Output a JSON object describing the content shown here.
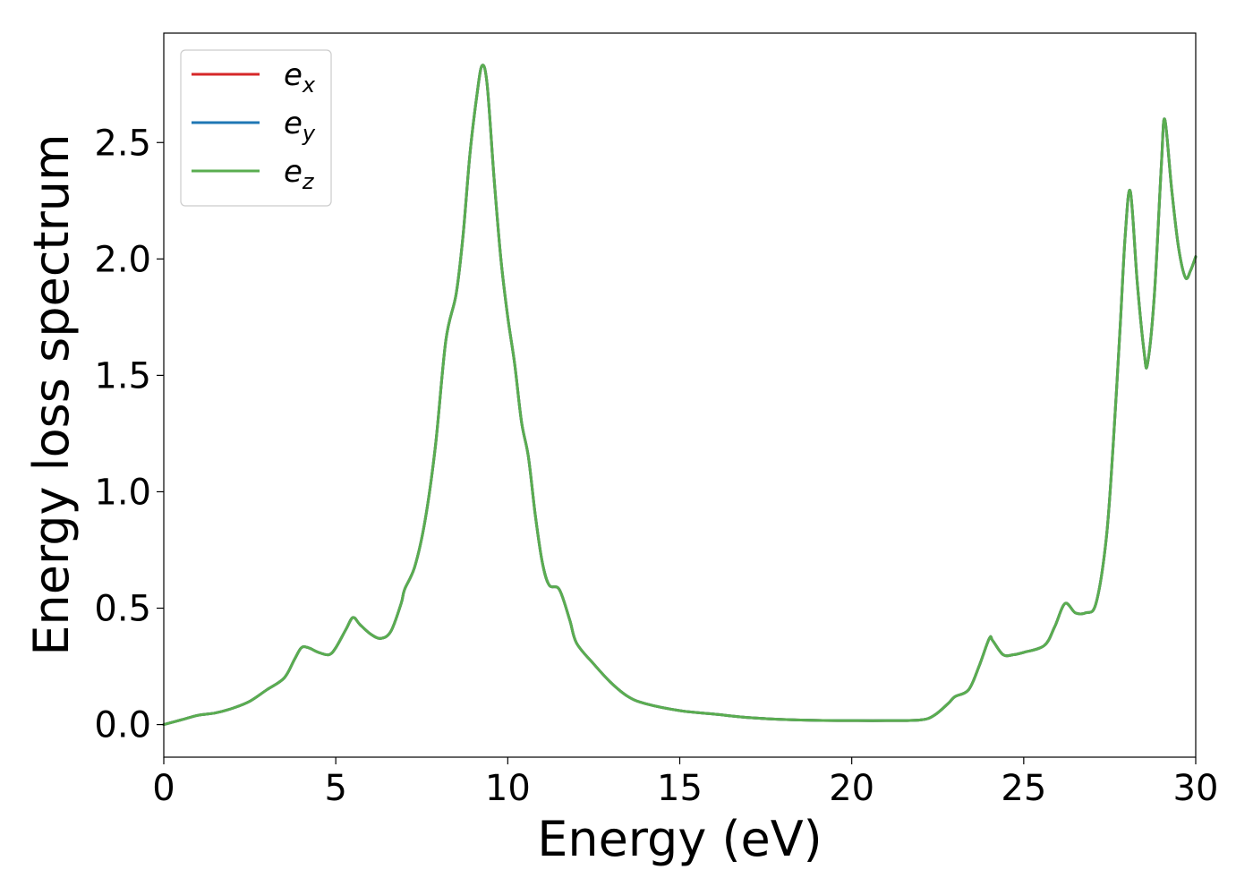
{
  "chart_data": {
    "type": "line",
    "title": "",
    "xlabel": "Energy (eV)",
    "ylabel": "Energy loss spectrum",
    "xlim": [
      0,
      30
    ],
    "ylim": [
      -0.14,
      2.97
    ],
    "xticks": [
      0,
      5,
      10,
      15,
      20,
      25,
      30
    ],
    "xtick_labels": [
      "0",
      "5",
      "10",
      "15",
      "20",
      "25",
      "30"
    ],
    "yticks": [
      0.0,
      0.5,
      1.0,
      1.5,
      2.0,
      2.5
    ],
    "ytick_labels": [
      "0.0",
      "0.5",
      "1.0",
      "1.5",
      "2.0",
      "2.5"
    ],
    "grid": false,
    "legend": {
      "placement": "top-left"
    },
    "series": [
      {
        "name": "e_x",
        "label_main": "e",
        "label_sub": "x",
        "color": "#d62728",
        "points": [
          [
            0,
            0.0
          ],
          [
            0.5,
            0.02
          ],
          [
            1,
            0.04
          ],
          [
            1.5,
            0.05
          ],
          [
            2,
            0.07
          ],
          [
            2.5,
            0.1
          ],
          [
            3,
            0.15
          ],
          [
            3.5,
            0.2
          ],
          [
            3.8,
            0.28
          ],
          [
            4.0,
            0.33
          ],
          [
            4.2,
            0.33
          ],
          [
            4.5,
            0.31
          ],
          [
            4.8,
            0.3
          ],
          [
            5.0,
            0.33
          ],
          [
            5.3,
            0.41
          ],
          [
            5.5,
            0.46
          ],
          [
            5.7,
            0.43
          ],
          [
            6.0,
            0.39
          ],
          [
            6.3,
            0.37
          ],
          [
            6.6,
            0.4
          ],
          [
            6.9,
            0.52
          ],
          [
            7.0,
            0.58
          ],
          [
            7.3,
            0.68
          ],
          [
            7.6,
            0.88
          ],
          [
            7.9,
            1.2
          ],
          [
            8.2,
            1.65
          ],
          [
            8.5,
            1.85
          ],
          [
            8.7,
            2.1
          ],
          [
            8.9,
            2.45
          ],
          [
            9.1,
            2.7
          ],
          [
            9.25,
            2.83
          ],
          [
            9.4,
            2.75
          ],
          [
            9.6,
            2.35
          ],
          [
            9.8,
            2.0
          ],
          [
            10.0,
            1.75
          ],
          [
            10.2,
            1.55
          ],
          [
            10.4,
            1.3
          ],
          [
            10.6,
            1.15
          ],
          [
            10.8,
            0.9
          ],
          [
            11.0,
            0.7
          ],
          [
            11.2,
            0.6
          ],
          [
            11.5,
            0.58
          ],
          [
            11.8,
            0.45
          ],
          [
            12.0,
            0.35
          ],
          [
            12.5,
            0.26
          ],
          [
            13.0,
            0.18
          ],
          [
            13.5,
            0.12
          ],
          [
            14.0,
            0.09
          ],
          [
            15.0,
            0.06
          ],
          [
            16.0,
            0.045
          ],
          [
            17.0,
            0.03
          ],
          [
            18.0,
            0.022
          ],
          [
            19.0,
            0.018
          ],
          [
            20.0,
            0.017
          ],
          [
            21.0,
            0.017
          ],
          [
            22.0,
            0.02
          ],
          [
            22.4,
            0.04
          ],
          [
            22.8,
            0.09
          ],
          [
            23.0,
            0.12
          ],
          [
            23.4,
            0.15
          ],
          [
            23.7,
            0.25
          ],
          [
            24.0,
            0.37
          ],
          [
            24.1,
            0.36
          ],
          [
            24.4,
            0.3
          ],
          [
            24.7,
            0.3
          ],
          [
            25.0,
            0.31
          ],
          [
            25.6,
            0.34
          ],
          [
            25.9,
            0.42
          ],
          [
            26.2,
            0.52
          ],
          [
            26.5,
            0.48
          ],
          [
            26.8,
            0.48
          ],
          [
            27.1,
            0.52
          ],
          [
            27.4,
            0.8
          ],
          [
            27.6,
            1.2
          ],
          [
            27.8,
            1.7
          ],
          [
            27.95,
            2.1
          ],
          [
            28.1,
            2.29
          ],
          [
            28.3,
            1.9
          ],
          [
            28.5,
            1.6
          ],
          [
            28.6,
            1.55
          ],
          [
            28.8,
            1.85
          ],
          [
            29.0,
            2.4
          ],
          [
            29.1,
            2.6
          ],
          [
            29.3,
            2.3
          ],
          [
            29.5,
            2.05
          ],
          [
            29.7,
            1.92
          ],
          [
            29.85,
            1.95
          ],
          [
            30.0,
            2.01
          ]
        ]
      },
      {
        "name": "e_y",
        "label_main": "e",
        "label_sub": "y",
        "color": "#1f77b4",
        "points": [
          [
            0,
            0.0
          ],
          [
            0.5,
            0.02
          ],
          [
            1,
            0.04
          ],
          [
            1.5,
            0.05
          ],
          [
            2,
            0.07
          ],
          [
            2.5,
            0.1
          ],
          [
            3,
            0.15
          ],
          [
            3.5,
            0.2
          ],
          [
            3.8,
            0.28
          ],
          [
            4.0,
            0.33
          ],
          [
            4.2,
            0.33
          ],
          [
            4.5,
            0.31
          ],
          [
            4.8,
            0.3
          ],
          [
            5.0,
            0.33
          ],
          [
            5.3,
            0.41
          ],
          [
            5.5,
            0.46
          ],
          [
            5.7,
            0.43
          ],
          [
            6.0,
            0.39
          ],
          [
            6.3,
            0.37
          ],
          [
            6.6,
            0.4
          ],
          [
            6.9,
            0.52
          ],
          [
            7.0,
            0.58
          ],
          [
            7.3,
            0.68
          ],
          [
            7.6,
            0.88
          ],
          [
            7.9,
            1.2
          ],
          [
            8.2,
            1.65
          ],
          [
            8.5,
            1.85
          ],
          [
            8.7,
            2.1
          ],
          [
            8.9,
            2.45
          ],
          [
            9.1,
            2.7
          ],
          [
            9.25,
            2.83
          ],
          [
            9.4,
            2.75
          ],
          [
            9.6,
            2.35
          ],
          [
            9.8,
            2.0
          ],
          [
            10.0,
            1.75
          ],
          [
            10.2,
            1.55
          ],
          [
            10.4,
            1.3
          ],
          [
            10.6,
            1.15
          ],
          [
            10.8,
            0.9
          ],
          [
            11.0,
            0.7
          ],
          [
            11.2,
            0.6
          ],
          [
            11.5,
            0.58
          ],
          [
            11.8,
            0.45
          ],
          [
            12.0,
            0.35
          ],
          [
            12.5,
            0.26
          ],
          [
            13.0,
            0.18
          ],
          [
            13.5,
            0.12
          ],
          [
            14.0,
            0.09
          ],
          [
            15.0,
            0.06
          ],
          [
            16.0,
            0.045
          ],
          [
            17.0,
            0.03
          ],
          [
            18.0,
            0.022
          ],
          [
            19.0,
            0.018
          ],
          [
            20.0,
            0.017
          ],
          [
            21.0,
            0.017
          ],
          [
            22.0,
            0.02
          ],
          [
            22.4,
            0.04
          ],
          [
            22.8,
            0.09
          ],
          [
            23.0,
            0.12
          ],
          [
            23.4,
            0.15
          ],
          [
            23.7,
            0.25
          ],
          [
            24.0,
            0.37
          ],
          [
            24.1,
            0.36
          ],
          [
            24.4,
            0.3
          ],
          [
            24.7,
            0.3
          ],
          [
            25.0,
            0.31
          ],
          [
            25.6,
            0.34
          ],
          [
            25.9,
            0.42
          ],
          [
            26.2,
            0.52
          ],
          [
            26.5,
            0.48
          ],
          [
            26.8,
            0.48
          ],
          [
            27.1,
            0.52
          ],
          [
            27.4,
            0.8
          ],
          [
            27.6,
            1.2
          ],
          [
            27.8,
            1.7
          ],
          [
            27.95,
            2.1
          ],
          [
            28.1,
            2.29
          ],
          [
            28.3,
            1.9
          ],
          [
            28.5,
            1.6
          ],
          [
            28.6,
            1.55
          ],
          [
            28.8,
            1.85
          ],
          [
            29.0,
            2.4
          ],
          [
            29.1,
            2.6
          ],
          [
            29.3,
            2.3
          ],
          [
            29.5,
            2.05
          ],
          [
            29.7,
            1.92
          ],
          [
            29.85,
            1.95
          ],
          [
            30.0,
            2.01
          ]
        ]
      },
      {
        "name": "e_z",
        "label_main": "e",
        "label_sub": "z",
        "color": "#5aad50",
        "points": [
          [
            0,
            0.0
          ],
          [
            0.5,
            0.02
          ],
          [
            1,
            0.04
          ],
          [
            1.5,
            0.05
          ],
          [
            2,
            0.07
          ],
          [
            2.5,
            0.1
          ],
          [
            3,
            0.15
          ],
          [
            3.5,
            0.2
          ],
          [
            3.8,
            0.28
          ],
          [
            4.0,
            0.33
          ],
          [
            4.2,
            0.33
          ],
          [
            4.5,
            0.31
          ],
          [
            4.8,
            0.3
          ],
          [
            5.0,
            0.33
          ],
          [
            5.3,
            0.41
          ],
          [
            5.5,
            0.46
          ],
          [
            5.7,
            0.43
          ],
          [
            6.0,
            0.39
          ],
          [
            6.3,
            0.37
          ],
          [
            6.6,
            0.4
          ],
          [
            6.9,
            0.52
          ],
          [
            7.0,
            0.58
          ],
          [
            7.3,
            0.68
          ],
          [
            7.6,
            0.88
          ],
          [
            7.9,
            1.2
          ],
          [
            8.2,
            1.65
          ],
          [
            8.5,
            1.85
          ],
          [
            8.7,
            2.1
          ],
          [
            8.9,
            2.45
          ],
          [
            9.1,
            2.7
          ],
          [
            9.25,
            2.83
          ],
          [
            9.4,
            2.75
          ],
          [
            9.6,
            2.35
          ],
          [
            9.8,
            2.0
          ],
          [
            10.0,
            1.75
          ],
          [
            10.2,
            1.55
          ],
          [
            10.4,
            1.3
          ],
          [
            10.6,
            1.15
          ],
          [
            10.8,
            0.9
          ],
          [
            11.0,
            0.7
          ],
          [
            11.2,
            0.6
          ],
          [
            11.5,
            0.58
          ],
          [
            11.8,
            0.45
          ],
          [
            12.0,
            0.35
          ],
          [
            12.5,
            0.26
          ],
          [
            13.0,
            0.18
          ],
          [
            13.5,
            0.12
          ],
          [
            14.0,
            0.09
          ],
          [
            15.0,
            0.06
          ],
          [
            16.0,
            0.045
          ],
          [
            17.0,
            0.03
          ],
          [
            18.0,
            0.022
          ],
          [
            19.0,
            0.018
          ],
          [
            20.0,
            0.017
          ],
          [
            21.0,
            0.017
          ],
          [
            22.0,
            0.02
          ],
          [
            22.4,
            0.04
          ],
          [
            22.8,
            0.09
          ],
          [
            23.0,
            0.12
          ],
          [
            23.4,
            0.15
          ],
          [
            23.7,
            0.25
          ],
          [
            24.0,
            0.37
          ],
          [
            24.1,
            0.36
          ],
          [
            24.4,
            0.3
          ],
          [
            24.7,
            0.3
          ],
          [
            25.0,
            0.31
          ],
          [
            25.6,
            0.34
          ],
          [
            25.9,
            0.42
          ],
          [
            26.2,
            0.52
          ],
          [
            26.5,
            0.48
          ],
          [
            26.8,
            0.48
          ],
          [
            27.1,
            0.52
          ],
          [
            27.4,
            0.8
          ],
          [
            27.6,
            1.2
          ],
          [
            27.8,
            1.7
          ],
          [
            27.95,
            2.1
          ],
          [
            28.1,
            2.29
          ],
          [
            28.3,
            1.9
          ],
          [
            28.5,
            1.6
          ],
          [
            28.6,
            1.55
          ],
          [
            28.8,
            1.85
          ],
          [
            29.0,
            2.4
          ],
          [
            29.1,
            2.6
          ],
          [
            29.3,
            2.3
          ],
          [
            29.5,
            2.05
          ],
          [
            29.7,
            1.92
          ],
          [
            29.85,
            1.95
          ],
          [
            30.0,
            2.01
          ]
        ]
      }
    ]
  }
}
